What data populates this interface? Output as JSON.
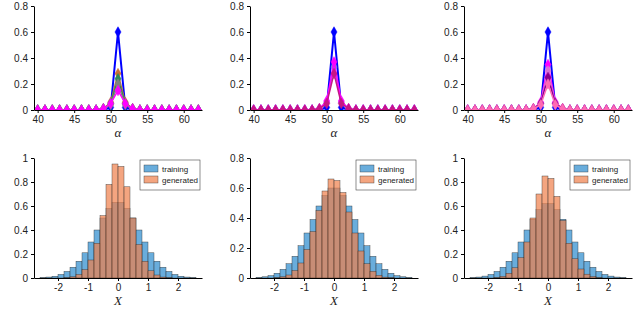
{
  "chart_data": [
    {
      "type": "line",
      "x_label": "α",
      "marker": "diamond",
      "x": [
        40,
        41,
        42,
        43,
        44,
        45,
        46,
        47,
        48,
        49,
        50,
        51,
        52,
        53,
        54,
        55,
        56,
        57,
        58,
        59,
        60,
        61,
        62
      ],
      "xlim": [
        39.5,
        62.5
      ],
      "xticks": [
        40,
        45,
        50,
        55,
        60
      ],
      "ylim": [
        0,
        0.8
      ],
      "yticks": [
        0,
        0.2,
        0.4,
        0.6,
        0.8
      ],
      "series": [
        {
          "color": "#0000ff",
          "values": [
            0,
            0,
            0,
            0,
            0,
            0,
            0,
            0,
            0,
            0,
            0.02,
            0.6,
            0.02,
            0,
            0,
            0,
            0,
            0,
            0,
            0,
            0,
            0,
            0
          ]
        },
        {
          "color": "#c87137",
          "values": [
            0,
            0,
            0,
            0,
            0,
            0,
            0,
            0,
            0,
            0.01,
            0.06,
            0.28,
            0.06,
            0.01,
            0,
            0,
            0,
            0,
            0,
            0,
            0,
            0,
            0
          ]
        },
        {
          "color": "#2e8b57",
          "values": [
            0,
            0,
            0,
            0,
            0,
            0,
            0,
            0,
            0,
            0.01,
            0.05,
            0.24,
            0.05,
            0.01,
            0,
            0,
            0,
            0,
            0,
            0,
            0,
            0,
            0
          ]
        },
        {
          "color": "#808080",
          "values": [
            0,
            0,
            0,
            0,
            0,
            0,
            0,
            0,
            0,
            0.01,
            0.04,
            0.2,
            0.04,
            0.01,
            0,
            0,
            0,
            0,
            0,
            0,
            0,
            0,
            0
          ]
        },
        {
          "color": "#ff00ff",
          "values": [
            0,
            0,
            0,
            0,
            0,
            0,
            0,
            0,
            0,
            0.01,
            0.05,
            0.15,
            0.05,
            0.01,
            0,
            0,
            0,
            0,
            0,
            0,
            0,
            0,
            0
          ]
        }
      ]
    },
    {
      "type": "line",
      "x_label": "α",
      "marker": "diamond",
      "x": [
        40,
        41,
        42,
        43,
        44,
        45,
        46,
        47,
        48,
        49,
        50,
        51,
        52,
        53,
        54,
        55,
        56,
        57,
        58,
        59,
        60,
        61,
        62
      ],
      "xlim": [
        39.5,
        62.5
      ],
      "xticks": [
        40,
        45,
        50,
        55,
        60
      ],
      "ylim": [
        0,
        0.8
      ],
      "yticks": [
        0,
        0.2,
        0.4,
        0.6,
        0.8
      ],
      "series": [
        {
          "color": "#0000ff",
          "values": [
            0,
            0,
            0,
            0,
            0,
            0,
            0,
            0,
            0,
            0,
            0.02,
            0.6,
            0.02,
            0,
            0,
            0,
            0,
            0,
            0,
            0,
            0,
            0,
            0
          ]
        },
        {
          "color": "#9370db",
          "values": [
            0,
            0,
            0,
            0,
            0,
            0,
            0,
            0,
            0,
            0.01,
            0.06,
            0.33,
            0.06,
            0.01,
            0,
            0,
            0,
            0,
            0,
            0,
            0,
            0,
            0
          ]
        },
        {
          "color": "#ff00ff",
          "values": [
            0,
            0,
            0,
            0,
            0,
            0,
            0,
            0,
            0,
            0.01,
            0.07,
            0.37,
            0.07,
            0.01,
            0,
            0,
            0,
            0,
            0,
            0,
            0,
            0,
            0
          ]
        },
        {
          "color": "#c71585",
          "values": [
            0,
            0,
            0,
            0,
            0,
            0,
            0,
            0,
            0,
            0.01,
            0.05,
            0.28,
            0.05,
            0.01,
            0,
            0,
            0,
            0,
            0,
            0,
            0,
            0,
            0
          ]
        }
      ]
    },
    {
      "type": "line",
      "x_label": "α",
      "marker": "diamond",
      "x": [
        40,
        41,
        42,
        43,
        44,
        45,
        46,
        47,
        48,
        49,
        50,
        51,
        52,
        53,
        54,
        55,
        56,
        57,
        58,
        59,
        60,
        61,
        62
      ],
      "xlim": [
        39.5,
        62.5
      ],
      "xticks": [
        40,
        45,
        50,
        55,
        60
      ],
      "ylim": [
        0,
        0.8
      ],
      "yticks": [
        0,
        0.2,
        0.4,
        0.6,
        0.8
      ],
      "series": [
        {
          "color": "#0000ff",
          "values": [
            0,
            0,
            0,
            0,
            0,
            0,
            0,
            0,
            0,
            0,
            0.02,
            0.6,
            0.02,
            0,
            0,
            0,
            0,
            0,
            0,
            0,
            0,
            0,
            0
          ]
        },
        {
          "color": "#ff00ff",
          "values": [
            0,
            0,
            0,
            0,
            0,
            0,
            0,
            0,
            0,
            0.01,
            0.06,
            0.35,
            0.06,
            0.01,
            0,
            0,
            0,
            0,
            0,
            0,
            0,
            0,
            0
          ]
        },
        {
          "color": "#da70d6",
          "values": [
            0,
            0,
            0,
            0,
            0,
            0,
            0,
            0,
            0,
            0.01,
            0.05,
            0.3,
            0.05,
            0.01,
            0,
            0,
            0,
            0,
            0,
            0,
            0,
            0,
            0
          ]
        },
        {
          "color": "#8b008b",
          "values": [
            0,
            0,
            0,
            0,
            0,
            0,
            0,
            0,
            0,
            0.01,
            0.05,
            0.25,
            0.05,
            0.01,
            0,
            0,
            0,
            0,
            0,
            0,
            0,
            0,
            0
          ]
        },
        {
          "color": "#ff69b4",
          "values": [
            0,
            0,
            0,
            0,
            0,
            0,
            0,
            0,
            0,
            0.01,
            0.04,
            0.2,
            0.04,
            0.01,
            0,
            0,
            0,
            0,
            0,
            0,
            0,
            0,
            0
          ]
        }
      ]
    },
    {
      "type": "histogram",
      "x_label": "X",
      "legend": "top-right",
      "bins": [
        -2.6,
        -2.4,
        -2.2,
        -2,
        -1.8,
        -1.6,
        -1.4,
        -1.2,
        -1,
        -0.8,
        -0.6,
        -0.4,
        -0.2,
        0,
        0.2,
        0.4,
        0.6,
        0.8,
        1,
        1.2,
        1.4,
        1.6,
        1.8,
        2,
        2.2,
        2.4,
        2.6
      ],
      "xlim": [
        -2.8,
        2.8
      ],
      "xticks": [
        -2,
        -1,
        0,
        1,
        2
      ],
      "ylim": [
        0,
        1
      ],
      "yticks": [
        0,
        0.2,
        0.4,
        0.6,
        0.8,
        1
      ],
      "series": [
        {
          "name": "training",
          "color": "#4f9fd6",
          "values": [
            0.004,
            0.008,
            0.015,
            0.03,
            0.055,
            0.09,
            0.14,
            0.21,
            0.3,
            0.4,
            0.5,
            0.58,
            0.63,
            0.63,
            0.58,
            0.5,
            0.4,
            0.3,
            0.21,
            0.14,
            0.09,
            0.055,
            0.03,
            0.015,
            0.008,
            0.004
          ]
        },
        {
          "name": "generated",
          "color": "#f07f4a",
          "values": [
            0,
            0,
            0,
            0,
            0.002,
            0.01,
            0.03,
            0.07,
            0.15,
            0.29,
            0.52,
            0.78,
            0.95,
            0.93,
            0.76,
            0.5,
            0.28,
            0.14,
            0.06,
            0.025,
            0.008,
            0.002,
            0,
            0,
            0,
            0
          ]
        }
      ]
    },
    {
      "type": "histogram",
      "x_label": "X",
      "legend": "top-right",
      "bins": [
        -2.6,
        -2.4,
        -2.2,
        -2,
        -1.8,
        -1.6,
        -1.4,
        -1.2,
        -1,
        -0.8,
        -0.6,
        -0.4,
        -0.2,
        0,
        0.2,
        0.4,
        0.6,
        0.8,
        1,
        1.2,
        1.4,
        1.6,
        1.8,
        2,
        2.2,
        2.4,
        2.6
      ],
      "xlim": [
        -2.8,
        2.8
      ],
      "xticks": [
        -2,
        -1,
        0,
        1,
        2
      ],
      "ylim": [
        0,
        0.8
      ],
      "yticks": [
        0,
        0.2,
        0.4,
        0.6,
        0.8
      ],
      "series": [
        {
          "name": "training",
          "color": "#4f9fd6",
          "values": [
            0.004,
            0.008,
            0.016,
            0.032,
            0.058,
            0.095,
            0.145,
            0.215,
            0.3,
            0.39,
            0.48,
            0.55,
            0.6,
            0.6,
            0.55,
            0.48,
            0.39,
            0.3,
            0.215,
            0.145,
            0.095,
            0.058,
            0.032,
            0.016,
            0.008,
            0.004
          ]
        },
        {
          "name": "generated",
          "color": "#f07f4a",
          "values": [
            0,
            0,
            0,
            0.002,
            0.008,
            0.02,
            0.05,
            0.1,
            0.19,
            0.31,
            0.45,
            0.58,
            0.66,
            0.65,
            0.57,
            0.44,
            0.3,
            0.18,
            0.095,
            0.045,
            0.018,
            0.006,
            0.002,
            0,
            0,
            0
          ]
        }
      ]
    },
    {
      "type": "histogram",
      "x_label": "X",
      "legend": "top-right",
      "bins": [
        -2.6,
        -2.4,
        -2.2,
        -2,
        -1.8,
        -1.6,
        -1.4,
        -1.2,
        -1,
        -0.8,
        -0.6,
        -0.4,
        -0.2,
        0,
        0.2,
        0.4,
        0.6,
        0.8,
        1,
        1.2,
        1.4,
        1.6,
        1.8,
        2,
        2.2,
        2.4,
        2.6
      ],
      "xlim": [
        -2.8,
        2.8
      ],
      "xticks": [
        -2,
        -1,
        0,
        1,
        2
      ],
      "ylim": [
        0,
        1
      ],
      "yticks": [
        0,
        0.2,
        0.4,
        0.6,
        0.8,
        1
      ],
      "series": [
        {
          "name": "training",
          "color": "#4f9fd6",
          "values": [
            0.004,
            0.008,
            0.016,
            0.03,
            0.055,
            0.09,
            0.14,
            0.21,
            0.3,
            0.4,
            0.49,
            0.57,
            0.62,
            0.62,
            0.57,
            0.49,
            0.4,
            0.3,
            0.21,
            0.14,
            0.09,
            0.055,
            0.03,
            0.016,
            0.008,
            0.004
          ]
        },
        {
          "name": "generated",
          "color": "#f07f4a",
          "values": [
            0,
            0,
            0,
            0,
            0.004,
            0.014,
            0.04,
            0.085,
            0.17,
            0.3,
            0.5,
            0.7,
            0.85,
            0.83,
            0.68,
            0.48,
            0.29,
            0.16,
            0.075,
            0.032,
            0.012,
            0.003,
            0,
            0,
            0,
            0
          ]
        }
      ]
    }
  ]
}
